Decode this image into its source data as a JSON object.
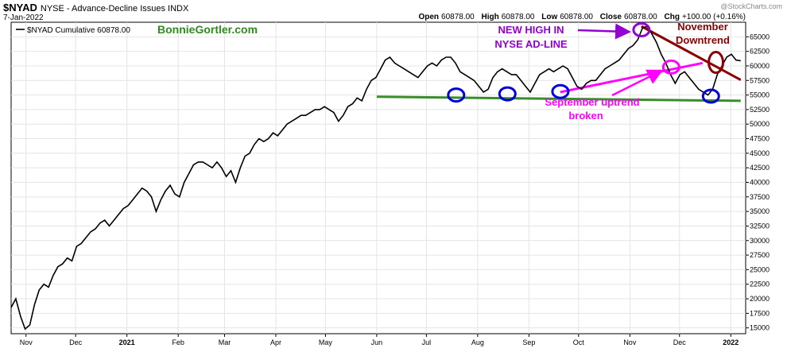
{
  "header": {
    "symbol": "$NYAD",
    "description": "NYSE - Advance-Decline Issues INDX",
    "date": "7-Jan-2022",
    "brand": "@StockCharts.com",
    "open_label": "Open",
    "open": "60878.00",
    "high_label": "High",
    "high": "60878.00",
    "low_label": "Low",
    "low": "60878.00",
    "close_label": "Close",
    "close": "60878.00",
    "chg_label": "Chg",
    "chg": "+100.00 (+0.16%)"
  },
  "legend": {
    "label": "$NYAD Cumulative 60878.00",
    "author": "BonnieGortler.com",
    "author_color": "#2e8b1e"
  },
  "annotations": {
    "new_high_line1": "NEW HIGH IN",
    "new_high_line2": "NYSE AD-LINE",
    "new_high_color": "#9400d3",
    "november_line1": "November",
    "november_line2": "Downtrend",
    "november_color": "#8b0000",
    "september_line1": "September uptrend",
    "september_line2": "broken",
    "september_color": "#ff00ff",
    "support_color": "#3a8c2a",
    "circle_color": "#0000dd"
  },
  "chart_data": {
    "type": "line",
    "series": [
      {
        "name": "$NYAD Cumulative",
        "color": "#000000",
        "x_start": "2020-10-23",
        "x_end": "2022-01-07",
        "values": [
          18500,
          20000,
          17000,
          14800,
          15500,
          19000,
          21500,
          22500,
          22000,
          24000,
          25500,
          26000,
          27000,
          26500,
          29000,
          29500,
          30500,
          31500,
          32000,
          33000,
          33500,
          32500,
          33500,
          34500,
          35500,
          36000,
          37000,
          38000,
          39000,
          38500,
          37500,
          35000,
          37000,
          38500,
          39500,
          38000,
          37500,
          40000,
          41500,
          43000,
          43500,
          43500,
          43000,
          42500,
          43500,
          42500,
          41000,
          42000,
          40000,
          42500,
          44500,
          45000,
          46500,
          47500,
          47000,
          47500,
          48500,
          48000,
          49000,
          50000,
          50500,
          51000,
          51500,
          51500,
          52000,
          52500,
          52500,
          53000,
          52500,
          52000,
          50500,
          51500,
          53000,
          53500,
          54500,
          54000,
          56000,
          57500,
          58000,
          59500,
          61000,
          61500,
          60500,
          60000,
          59500,
          59000,
          58500,
          58000,
          59000,
          60000,
          60500,
          60000,
          61000,
          61500,
          61500,
          60500,
          59000,
          58500,
          58000,
          57500,
          56500,
          55500,
          56000,
          58000,
          59000,
          59500,
          59000,
          58500,
          58500,
          57500,
          56500,
          55500,
          57000,
          58500,
          59000,
          59500,
          59000,
          59500,
          60000,
          59500,
          58000,
          56500,
          56000,
          57000,
          57500,
          57500,
          58500,
          59500,
          60000,
          60500,
          61000,
          62000,
          63000,
          63500,
          64500,
          66500,
          66800,
          65500,
          64000,
          62000,
          60500,
          58500,
          57000,
          58500,
          59000,
          58000,
          57000,
          56000,
          55500,
          55000,
          56000,
          58500,
          60000,
          61500,
          62000,
          61000,
          60878
        ],
        "points": [
          {
            "x": "2020-10-23",
            "y": 18500
          },
          {
            "x": "2020-10-30",
            "y": 14800
          },
          {
            "x": "2020-11-13",
            "y": 24000
          },
          {
            "x": "2020-12-01",
            "y": 30500
          },
          {
            "x": "2021-01-04",
            "y": 36000
          },
          {
            "x": "2021-01-29",
            "y": 35000
          },
          {
            "x": "2021-02-12",
            "y": 43500
          },
          {
            "x": "2021-03-05",
            "y": 40000
          },
          {
            "x": "2021-04-01",
            "y": 48500
          },
          {
            "x": "2021-05-03",
            "y": 52500
          },
          {
            "x": "2021-05-12",
            "y": 50500
          },
          {
            "x": "2021-06-08",
            "y": 61500
          },
          {
            "x": "2021-07-19",
            "y": 55500
          },
          {
            "x": "2021-08-19",
            "y": 55500
          },
          {
            "x": "2021-09-20",
            "y": 56000
          },
          {
            "x": "2021-11-08",
            "y": 66800
          },
          {
            "x": "2021-12-01",
            "y": 57000
          },
          {
            "x": "2021-12-20",
            "y": 55000
          },
          {
            "x": "2022-01-07",
            "y": 60878
          }
        ]
      }
    ],
    "support_line": {
      "start": {
        "x": "2021-06-01",
        "y": 54700
      },
      "end": {
        "x": "2022-01-07",
        "y": 54000
      }
    },
    "september_uptrend": {
      "start": {
        "x": "2021-09-20",
        "y": 55500
      },
      "end": {
        "x": "2021-12-15",
        "y": 60500
      }
    },
    "november_downtrend": {
      "start": {
        "x": "2021-11-08",
        "y": 66800
      },
      "end": {
        "x": "2022-01-07",
        "y": 57600
      }
    },
    "circles": [
      {
        "x": "2021-07-19",
        "y": 55000,
        "color": "blue"
      },
      {
        "x": "2021-08-19",
        "y": 55200,
        "color": "blue"
      },
      {
        "x": "2021-09-20",
        "y": 55600,
        "color": "blue"
      },
      {
        "x": "2021-11-08",
        "y": 66200,
        "color": "purple"
      },
      {
        "x": "2021-11-26",
        "y": 59800,
        "color": "magenta"
      },
      {
        "x": "2021-12-20",
        "y": 54800,
        "color": "blue"
      },
      {
        "x": "2021-12-23",
        "y": 60600,
        "color": "darkred"
      }
    ],
    "x_ticks": [
      {
        "x": "2020-11-01",
        "label": "Nov"
      },
      {
        "x": "2020-12-01",
        "label": "Dec"
      },
      {
        "x": "2021-01-01",
        "label": "2021"
      },
      {
        "x": "2021-02-01",
        "label": "Feb"
      },
      {
        "x": "2021-03-01",
        "label": "Mar"
      },
      {
        "x": "2021-04-01",
        "label": "Apr"
      },
      {
        "x": "2021-05-01",
        "label": "May"
      },
      {
        "x": "2021-06-01",
        "label": "Jun"
      },
      {
        "x": "2021-07-01",
        "label": "Jul"
      },
      {
        "x": "2021-08-01",
        "label": "Aug"
      },
      {
        "x": "2021-09-01",
        "label": "Sep"
      },
      {
        "x": "2021-10-01",
        "label": "Oct"
      },
      {
        "x": "2021-11-01",
        "label": "Nov"
      },
      {
        "x": "2021-12-01",
        "label": "Dec"
      },
      {
        "x": "2022-01-01",
        "label": "2022"
      }
    ],
    "y_ticks": [
      15000,
      17500,
      20000,
      22500,
      25000,
      27500,
      30000,
      32500,
      35000,
      37500,
      40000,
      42500,
      45000,
      47500,
      50000,
      52500,
      55000,
      57500,
      60000,
      62500,
      65000
    ],
    "ylim": [
      14000,
      67500
    ],
    "xlim": [
      "2020-10-23",
      "2022-01-10"
    ],
    "grid": true,
    "legend_position": "top-left"
  }
}
